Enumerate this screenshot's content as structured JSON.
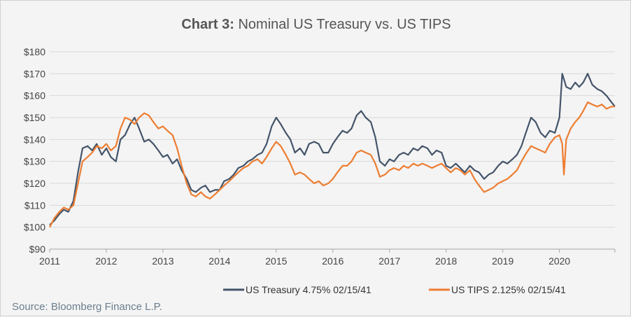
{
  "chart_data": {
    "type": "line",
    "title_bold": "Chart 3:",
    "title_rest": " Nominal US Treasury vs. US TIPS",
    "xlabel": "",
    "ylabel": "",
    "x_ticks": [
      "2011",
      "2012",
      "2013",
      "2014",
      "2015",
      "2016",
      "2017",
      "2018",
      "2019",
      "2020"
    ],
    "y_ticks": [
      "$90",
      "$100",
      "$110",
      "$120",
      "$130",
      "$140",
      "$150",
      "$160",
      "$170",
      "$180"
    ],
    "xlim": [
      2011.0,
      2020.98
    ],
    "ylim": [
      90,
      180
    ],
    "grid": "horizontal",
    "legend_position": "bottom",
    "series": [
      {
        "name": "US Treasury 4.75% 02/15/41",
        "color": "#44546a",
        "points": [
          [
            2011.0,
            101
          ],
          [
            2011.08,
            103
          ],
          [
            2011.17,
            106
          ],
          [
            2011.25,
            108
          ],
          [
            2011.33,
            107
          ],
          [
            2011.42,
            112
          ],
          [
            2011.5,
            125
          ],
          [
            2011.58,
            136
          ],
          [
            2011.67,
            137
          ],
          [
            2011.75,
            135
          ],
          [
            2011.83,
            138
          ],
          [
            2011.92,
            133
          ],
          [
            2012.0,
            136
          ],
          [
            2012.08,
            132
          ],
          [
            2012.17,
            130
          ],
          [
            2012.25,
            140
          ],
          [
            2012.33,
            142
          ],
          [
            2012.42,
            147
          ],
          [
            2012.5,
            150
          ],
          [
            2012.58,
            145
          ],
          [
            2012.67,
            139
          ],
          [
            2012.75,
            140
          ],
          [
            2012.83,
            138
          ],
          [
            2012.92,
            135
          ],
          [
            2013.0,
            132
          ],
          [
            2013.08,
            133
          ],
          [
            2013.17,
            129
          ],
          [
            2013.25,
            131
          ],
          [
            2013.33,
            126
          ],
          [
            2013.42,
            122
          ],
          [
            2013.5,
            117
          ],
          [
            2013.58,
            116
          ],
          [
            2013.67,
            118
          ],
          [
            2013.75,
            119
          ],
          [
            2013.83,
            116
          ],
          [
            2013.92,
            117
          ],
          [
            2014.0,
            117
          ],
          [
            2014.08,
            121
          ],
          [
            2014.17,
            122
          ],
          [
            2014.25,
            124
          ],
          [
            2014.33,
            127
          ],
          [
            2014.42,
            128
          ],
          [
            2014.5,
            130
          ],
          [
            2014.58,
            131
          ],
          [
            2014.67,
            133
          ],
          [
            2014.75,
            134
          ],
          [
            2014.83,
            138
          ],
          [
            2014.92,
            146
          ],
          [
            2015.0,
            150
          ],
          [
            2015.08,
            147
          ],
          [
            2015.17,
            143
          ],
          [
            2015.25,
            140
          ],
          [
            2015.33,
            134
          ],
          [
            2015.42,
            136
          ],
          [
            2015.5,
            133
          ],
          [
            2015.58,
            138
          ],
          [
            2015.67,
            139
          ],
          [
            2015.75,
            138
          ],
          [
            2015.83,
            134
          ],
          [
            2015.92,
            134
          ],
          [
            2016.0,
            138
          ],
          [
            2016.08,
            141
          ],
          [
            2016.17,
            144
          ],
          [
            2016.25,
            143
          ],
          [
            2016.33,
            145
          ],
          [
            2016.42,
            151
          ],
          [
            2016.5,
            153
          ],
          [
            2016.58,
            150
          ],
          [
            2016.67,
            148
          ],
          [
            2016.75,
            141
          ],
          [
            2016.83,
            130
          ],
          [
            2016.92,
            128
          ],
          [
            2017.0,
            131
          ],
          [
            2017.08,
            130
          ],
          [
            2017.17,
            133
          ],
          [
            2017.25,
            134
          ],
          [
            2017.33,
            133
          ],
          [
            2017.42,
            136
          ],
          [
            2017.5,
            135
          ],
          [
            2017.58,
            137
          ],
          [
            2017.67,
            136
          ],
          [
            2017.75,
            133
          ],
          [
            2017.83,
            135
          ],
          [
            2017.92,
            134
          ],
          [
            2018.0,
            128
          ],
          [
            2018.08,
            127
          ],
          [
            2018.17,
            129
          ],
          [
            2018.25,
            127
          ],
          [
            2018.33,
            125
          ],
          [
            2018.42,
            128
          ],
          [
            2018.5,
            126
          ],
          [
            2018.58,
            125
          ],
          [
            2018.67,
            122
          ],
          [
            2018.75,
            124
          ],
          [
            2018.83,
            125
          ],
          [
            2018.92,
            128
          ],
          [
            2019.0,
            130
          ],
          [
            2019.08,
            129
          ],
          [
            2019.17,
            131
          ],
          [
            2019.25,
            133
          ],
          [
            2019.33,
            137
          ],
          [
            2019.42,
            144
          ],
          [
            2019.5,
            150
          ],
          [
            2019.58,
            148
          ],
          [
            2019.67,
            143
          ],
          [
            2019.75,
            141
          ],
          [
            2019.83,
            144
          ],
          [
            2019.92,
            143
          ],
          [
            2020.0,
            150
          ],
          [
            2020.05,
            170
          ],
          [
            2020.12,
            164
          ],
          [
            2020.2,
            163
          ],
          [
            2020.28,
            166
          ],
          [
            2020.35,
            164
          ],
          [
            2020.42,
            166
          ],
          [
            2020.5,
            170
          ],
          [
            2020.58,
            165
          ],
          [
            2020.67,
            163
          ],
          [
            2020.75,
            162
          ],
          [
            2020.83,
            160
          ],
          [
            2020.92,
            157
          ],
          [
            2020.98,
            155
          ]
        ]
      },
      {
        "name": "US TIPS 2.125% 02/15/41",
        "color": "#ed7d31",
        "points": [
          [
            2011.0,
            100
          ],
          [
            2011.08,
            104
          ],
          [
            2011.17,
            107
          ],
          [
            2011.25,
            109
          ],
          [
            2011.33,
            108
          ],
          [
            2011.42,
            110
          ],
          [
            2011.5,
            120
          ],
          [
            2011.58,
            130
          ],
          [
            2011.67,
            132
          ],
          [
            2011.75,
            134
          ],
          [
            2011.83,
            137
          ],
          [
            2011.92,
            136
          ],
          [
            2012.0,
            138
          ],
          [
            2012.08,
            135
          ],
          [
            2012.17,
            137
          ],
          [
            2012.25,
            145
          ],
          [
            2012.33,
            150
          ],
          [
            2012.42,
            149
          ],
          [
            2012.5,
            147
          ],
          [
            2012.58,
            150
          ],
          [
            2012.67,
            152
          ],
          [
            2012.75,
            151
          ],
          [
            2012.83,
            148
          ],
          [
            2012.92,
            145
          ],
          [
            2013.0,
            146
          ],
          [
            2013.08,
            144
          ],
          [
            2013.17,
            142
          ],
          [
            2013.25,
            136
          ],
          [
            2013.33,
            128
          ],
          [
            2013.42,
            120
          ],
          [
            2013.5,
            115
          ],
          [
            2013.58,
            114
          ],
          [
            2013.67,
            116
          ],
          [
            2013.75,
            114
          ],
          [
            2013.83,
            113
          ],
          [
            2013.92,
            115
          ],
          [
            2014.0,
            117
          ],
          [
            2014.08,
            119
          ],
          [
            2014.17,
            121
          ],
          [
            2014.25,
            123
          ],
          [
            2014.33,
            125
          ],
          [
            2014.42,
            127
          ],
          [
            2014.5,
            128
          ],
          [
            2014.58,
            130
          ],
          [
            2014.67,
            131
          ],
          [
            2014.75,
            129
          ],
          [
            2014.83,
            132
          ],
          [
            2014.92,
            136
          ],
          [
            2015.0,
            139
          ],
          [
            2015.08,
            137
          ],
          [
            2015.17,
            133
          ],
          [
            2015.25,
            129
          ],
          [
            2015.33,
            124
          ],
          [
            2015.42,
            125
          ],
          [
            2015.5,
            124
          ],
          [
            2015.58,
            122
          ],
          [
            2015.67,
            120
          ],
          [
            2015.75,
            121
          ],
          [
            2015.83,
            119
          ],
          [
            2015.92,
            120
          ],
          [
            2016.0,
            122
          ],
          [
            2016.08,
            125
          ],
          [
            2016.17,
            128
          ],
          [
            2016.25,
            128
          ],
          [
            2016.33,
            130
          ],
          [
            2016.42,
            134
          ],
          [
            2016.5,
            135
          ],
          [
            2016.58,
            134
          ],
          [
            2016.67,
            133
          ],
          [
            2016.75,
            129
          ],
          [
            2016.83,
            123
          ],
          [
            2016.92,
            124
          ],
          [
            2017.0,
            126
          ],
          [
            2017.08,
            127
          ],
          [
            2017.17,
            126
          ],
          [
            2017.25,
            128
          ],
          [
            2017.33,
            127
          ],
          [
            2017.42,
            129
          ],
          [
            2017.5,
            128
          ],
          [
            2017.58,
            129
          ],
          [
            2017.67,
            128
          ],
          [
            2017.75,
            127
          ],
          [
            2017.83,
            128
          ],
          [
            2017.92,
            129
          ],
          [
            2018.0,
            127
          ],
          [
            2018.08,
            125
          ],
          [
            2018.17,
            127
          ],
          [
            2018.25,
            126
          ],
          [
            2018.33,
            124
          ],
          [
            2018.42,
            126
          ],
          [
            2018.5,
            122
          ],
          [
            2018.58,
            119
          ],
          [
            2018.67,
            116
          ],
          [
            2018.75,
            117
          ],
          [
            2018.83,
            118
          ],
          [
            2018.92,
            120
          ],
          [
            2019.0,
            121
          ],
          [
            2019.08,
            122
          ],
          [
            2019.17,
            124
          ],
          [
            2019.25,
            126
          ],
          [
            2019.33,
            130
          ],
          [
            2019.42,
            134
          ],
          [
            2019.5,
            137
          ],
          [
            2019.58,
            136
          ],
          [
            2019.67,
            135
          ],
          [
            2019.75,
            134
          ],
          [
            2019.83,
            138
          ],
          [
            2019.92,
            141
          ],
          [
            2020.0,
            142
          ],
          [
            2020.05,
            138
          ],
          [
            2020.08,
            124
          ],
          [
            2020.12,
            140
          ],
          [
            2020.2,
            145
          ],
          [
            2020.28,
            148
          ],
          [
            2020.35,
            150
          ],
          [
            2020.42,
            153
          ],
          [
            2020.5,
            157
          ],
          [
            2020.58,
            156
          ],
          [
            2020.67,
            155
          ],
          [
            2020.75,
            156
          ],
          [
            2020.83,
            154
          ],
          [
            2020.92,
            155
          ],
          [
            2020.98,
            155
          ]
        ]
      }
    ]
  },
  "source": "Source: Bloomberg Finance L.P."
}
